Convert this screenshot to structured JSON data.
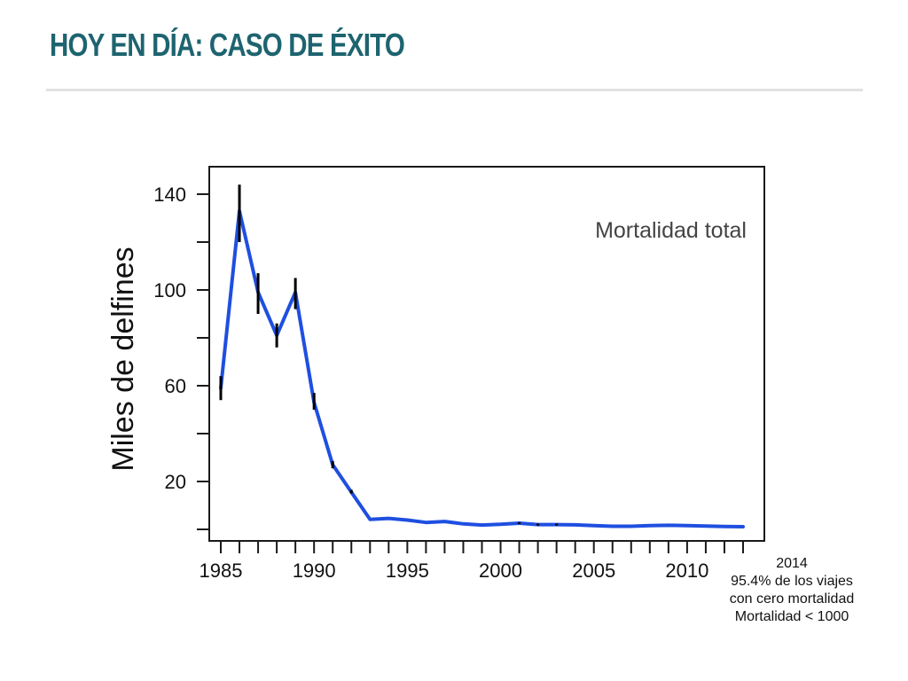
{
  "slide": {
    "title": "HOY EN DÍA: CASO DE ÉXITO"
  },
  "note": {
    "lines": [
      "2014",
      "95.4% de los viajes",
      "con cero mortalidad",
      "Mortalidad < 1000"
    ]
  },
  "colors": {
    "title": "#1e6470",
    "series": "#1f4fe0",
    "error_bars": "#000000"
  },
  "chart_data": {
    "type": "line",
    "title": "",
    "annotation": "Mortalidad total",
    "xlabel": "",
    "ylabel": "Miles de delfines",
    "xlim": [
      1984.5,
      2013.5
    ],
    "ylim": [
      0,
      150
    ],
    "x_ticks": [
      1985,
      1990,
      1995,
      2000,
      2005,
      2010
    ],
    "y_ticks": [
      20,
      60,
      100,
      140
    ],
    "grid": false,
    "series": [
      {
        "x": [
          1985,
          1986,
          1987,
          1988,
          1989,
          1990,
          1991,
          1992,
          1993,
          1994,
          1995,
          1996,
          1997,
          1998,
          1999,
          2000,
          2001,
          2002,
          2003,
          2004,
          2005,
          2006,
          2007,
          2008,
          2009,
          2010,
          2011,
          2012,
          2013
        ],
        "y": [
          59,
          133,
          99,
          81,
          99,
          53,
          27,
          15.5,
          4.2,
          4.6,
          3.9,
          2.9,
          3.3,
          2.3,
          1.8,
          2.1,
          2.6,
          2.0,
          2.0,
          1.9,
          1.6,
          1.3,
          1.3,
          1.6,
          1.7,
          1.6,
          1.4,
          1.2,
          1.1
        ],
        "error_low": [
          54,
          120,
          90,
          76,
          92,
          50,
          25.5,
          15,
          4.2,
          4.6,
          3.9,
          2.9,
          3.3,
          2.3,
          1.8,
          2.1,
          2.2,
          1.6,
          1.6,
          1.9,
          1.6,
          1.3,
          1.3,
          1.6,
          1.7,
          1.6,
          1.4,
          1.2,
          1.1
        ],
        "error_high": [
          64,
          144,
          107,
          86,
          105,
          57,
          28.5,
          16.5,
          4.2,
          4.6,
          3.9,
          2.9,
          3.3,
          2.3,
          1.8,
          2.1,
          3.0,
          2.4,
          2.4,
          1.9,
          1.6,
          1.3,
          1.3,
          1.6,
          1.7,
          1.6,
          1.4,
          1.2,
          1.1
        ]
      }
    ]
  }
}
